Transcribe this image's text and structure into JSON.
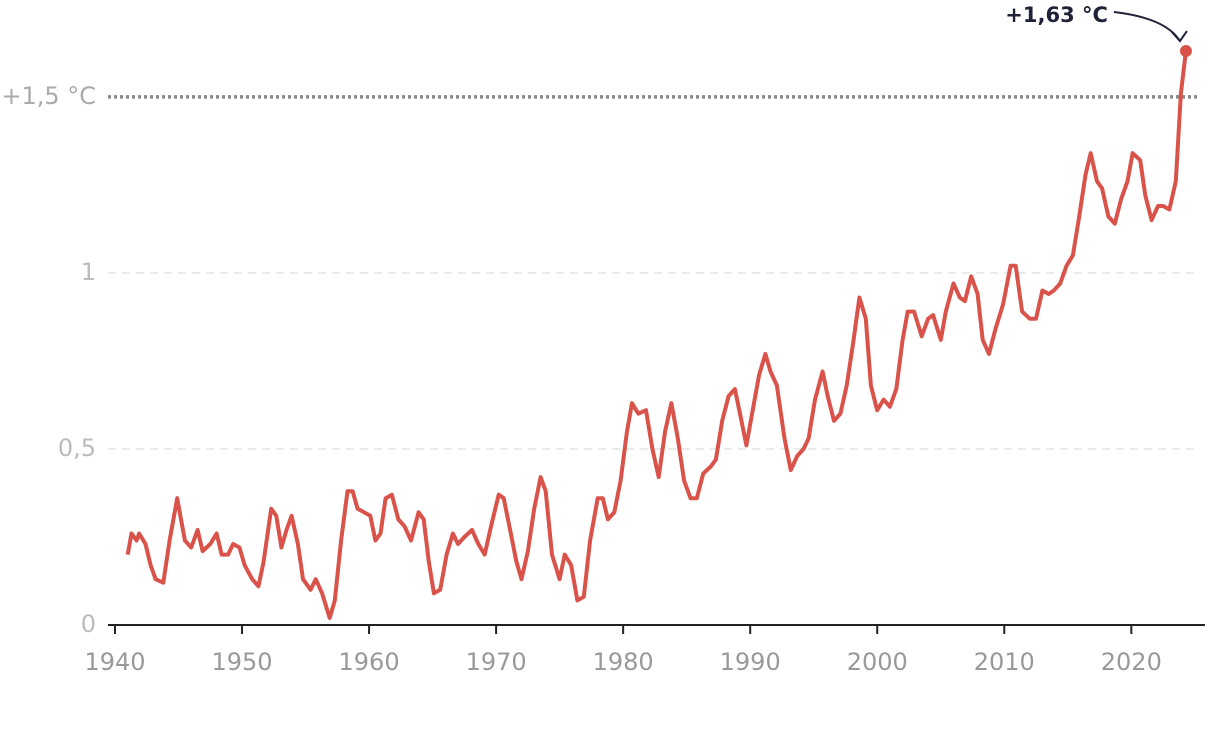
{
  "chart_data": {
    "type": "line",
    "x": [
      1941.0,
      1941.3,
      1941.7,
      1941.9,
      1942.4,
      1942.8,
      1943.2,
      1943.8,
      1944.3,
      1944.9,
      1945.2,
      1945.5,
      1946.0,
      1946.5,
      1946.9,
      1947.5,
      1948.0,
      1948.4,
      1948.9,
      1949.3,
      1949.8,
      1950.2,
      1950.8,
      1951.3,
      1951.7,
      1952.3,
      1952.7,
      1953.1,
      1953.5,
      1953.9,
      1954.4,
      1954.8,
      1955.4,
      1955.8,
      1956.3,
      1956.9,
      1957.3,
      1957.8,
      1958.3,
      1958.7,
      1959.1,
      1959.6,
      1960.1,
      1960.5,
      1960.9,
      1961.3,
      1961.8,
      1962.3,
      1962.8,
      1963.3,
      1963.9,
      1964.3,
      1964.7,
      1965.1,
      1965.6,
      1966.1,
      1966.6,
      1967.0,
      1967.5,
      1968.1,
      1968.6,
      1969.1,
      1969.6,
      1970.2,
      1970.6,
      1971.1,
      1971.6,
      1972.0,
      1972.5,
      1973.0,
      1973.5,
      1973.9,
      1974.4,
      1975.0,
      1975.4,
      1975.9,
      1976.4,
      1976.9,
      1977.4,
      1978.0,
      1978.4,
      1978.8,
      1979.3,
      1979.8,
      1980.3,
      1980.7,
      1981.2,
      1981.8,
      1982.3,
      1982.8,
      1983.3,
      1983.8,
      1984.3,
      1984.8,
      1985.3,
      1985.8,
      1986.3,
      1986.9,
      1987.3,
      1987.8,
      1988.3,
      1988.8,
      1989.2,
      1989.7,
      1990.2,
      1990.7,
      1991.2,
      1991.6,
      1992.1,
      1992.7,
      1993.2,
      1993.7,
      1994.2,
      1994.6,
      1995.1,
      1995.7,
      1996.1,
      1996.6,
      1997.1,
      1997.6,
      1998.1,
      1998.6,
      1999.1,
      1999.5,
      2000.0,
      2000.5,
      2001.0,
      2001.5,
      2002.0,
      2002.4,
      2002.9,
      2003.5,
      2004.0,
      2004.4,
      2005.0,
      2005.4,
      2006.0,
      2006.5,
      2006.9,
      2007.4,
      2007.9,
      2008.3,
      2008.8,
      2009.3,
      2009.9,
      2010.5,
      2010.9,
      2011.4,
      2012.0,
      2012.5,
      2013.0,
      2013.5,
      2013.9,
      2014.4,
      2014.9,
      2015.4,
      2015.9,
      2016.4,
      2016.8,
      2017.3,
      2017.7,
      2018.2,
      2018.7,
      2019.2,
      2019.7,
      2020.1,
      2020.7,
      2021.1,
      2021.6,
      2022.1,
      2022.5,
      2023.0,
      2023.5,
      2023.9,
      2024.3
    ],
    "series": [
      {
        "color": "#d9534a",
        "values": [
          0.2,
          0.26,
          0.24,
          0.26,
          0.23,
          0.17,
          0.13,
          0.12,
          0.24,
          0.36,
          0.3,
          0.24,
          0.22,
          0.27,
          0.21,
          0.23,
          0.26,
          0.2,
          0.2,
          0.23,
          0.22,
          0.17,
          0.13,
          0.11,
          0.18,
          0.33,
          0.31,
          0.22,
          0.27,
          0.31,
          0.23,
          0.13,
          0.1,
          0.13,
          0.09,
          0.02,
          0.07,
          0.24,
          0.38,
          0.38,
          0.33,
          0.32,
          0.31,
          0.24,
          0.26,
          0.36,
          0.37,
          0.3,
          0.28,
          0.24,
          0.32,
          0.3,
          0.18,
          0.09,
          0.1,
          0.2,
          0.26,
          0.23,
          0.25,
          0.27,
          0.23,
          0.2,
          0.28,
          0.37,
          0.36,
          0.27,
          0.18,
          0.13,
          0.21,
          0.33,
          0.42,
          0.38,
          0.2,
          0.13,
          0.2,
          0.17,
          0.07,
          0.08,
          0.24,
          0.36,
          0.36,
          0.3,
          0.32,
          0.41,
          0.55,
          0.63,
          0.6,
          0.61,
          0.5,
          0.42,
          0.55,
          0.63,
          0.53,
          0.41,
          0.36,
          0.36,
          0.43,
          0.45,
          0.47,
          0.58,
          0.65,
          0.67,
          0.6,
          0.51,
          0.61,
          0.71,
          0.77,
          0.72,
          0.68,
          0.53,
          0.44,
          0.48,
          0.5,
          0.53,
          0.64,
          0.72,
          0.65,
          0.58,
          0.6,
          0.68,
          0.8,
          0.93,
          0.87,
          0.68,
          0.61,
          0.64,
          0.62,
          0.67,
          0.81,
          0.89,
          0.89,
          0.82,
          0.87,
          0.88,
          0.81,
          0.89,
          0.97,
          0.93,
          0.92,
          0.99,
          0.94,
          0.81,
          0.77,
          0.84,
          0.91,
          1.02,
          1.02,
          0.89,
          0.87,
          0.87,
          0.95,
          0.94,
          0.95,
          0.97,
          1.02,
          1.05,
          1.16,
          1.28,
          1.34,
          1.26,
          1.24,
          1.16,
          1.14,
          1.21,
          1.26,
          1.34,
          1.32,
          1.22,
          1.15,
          1.19,
          1.19,
          1.18,
          1.26,
          1.51,
          1.63
        ]
      }
    ],
    "xlim": [
      1939.45,
      2025.8
    ],
    "xticks": [
      1940,
      1950,
      1960,
      1970,
      1980,
      1990,
      2000,
      2010,
      2020
    ],
    "ylim": [
      0,
      1.775
    ],
    "yticks": [
      0,
      {
        "value": 0.5,
        "label": "0,5"
      },
      1,
      {
        "value": 1.5,
        "label": "+1,5 °C"
      }
    ],
    "grid": true,
    "annotations": [
      {
        "text": "+1,63 °C",
        "x": 2024.3,
        "y": 1.63
      }
    ]
  }
}
